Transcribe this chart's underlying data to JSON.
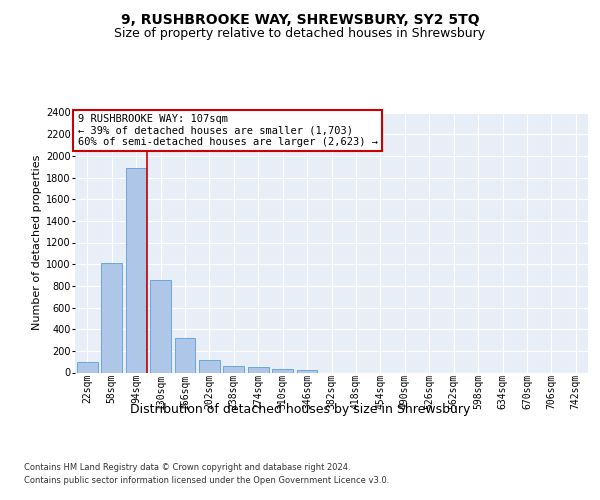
{
  "title": "9, RUSHBROOKE WAY, SHREWSBURY, SY2 5TQ",
  "subtitle": "Size of property relative to detached houses in Shrewsbury",
  "xlabel": "Distribution of detached houses by size in Shrewsbury",
  "ylabel": "Number of detached properties",
  "bar_labels": [
    "22sqm",
    "58sqm",
    "94sqm",
    "130sqm",
    "166sqm",
    "202sqm",
    "238sqm",
    "274sqm",
    "310sqm",
    "346sqm",
    "382sqm",
    "418sqm",
    "454sqm",
    "490sqm",
    "526sqm",
    "562sqm",
    "598sqm",
    "634sqm",
    "670sqm",
    "706sqm",
    "742sqm"
  ],
  "bar_values": [
    95,
    1010,
    1890,
    855,
    315,
    115,
    60,
    50,
    30,
    20,
    0,
    0,
    0,
    0,
    0,
    0,
    0,
    0,
    0,
    0,
    0
  ],
  "bar_color": "#aec6e8",
  "bar_edge_color": "#5a9fd4",
  "vline_x_pos": 2.43,
  "vline_color": "#cc0000",
  "annotation_text": "9 RUSHBROOKE WAY: 107sqm\n← 39% of detached houses are smaller (1,703)\n60% of semi-detached houses are larger (2,623) →",
  "annotation_box_color": "#ffffff",
  "annotation_border_color": "#cc0000",
  "ylim": [
    0,
    2400
  ],
  "yticks": [
    0,
    200,
    400,
    600,
    800,
    1000,
    1200,
    1400,
    1600,
    1800,
    2000,
    2200,
    2400
  ],
  "plot_bg_color": "#e8eef8",
  "footer1": "Contains HM Land Registry data © Crown copyright and database right 2024.",
  "footer2": "Contains public sector information licensed under the Open Government Licence v3.0.",
  "title_fontsize": 10,
  "subtitle_fontsize": 9,
  "ylabel_fontsize": 8,
  "xlabel_fontsize": 9,
  "tick_fontsize": 7,
  "annotation_fontsize": 7.5,
  "footer_fontsize": 6
}
